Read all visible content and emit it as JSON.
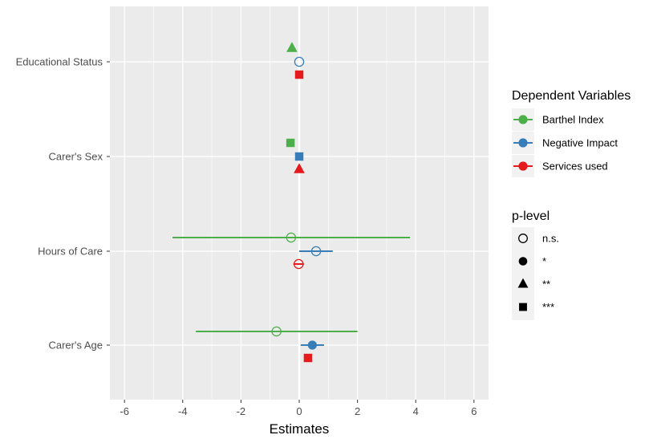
{
  "chart_data": {
    "type": "scatter",
    "subtype": "coefficient-plot",
    "xlabel": "Estimates",
    "ylabel": "",
    "xlim": [
      -6.5,
      6.5
    ],
    "x_ticks": [
      -6,
      -4,
      -2,
      0,
      2,
      4,
      6
    ],
    "x_tick_labels": [
      "-6",
      "-4",
      "-2",
      "0",
      "2",
      "4",
      "6"
    ],
    "categories": [
      "Educational Status",
      "Carer's Sex",
      "Hours of Care",
      "Carer's Age"
    ],
    "grid": true,
    "legend_position": "right",
    "series": [
      {
        "name": "Barthel Index",
        "color": "#4daf4a",
        "points": [
          {
            "category": "Educational Status",
            "estimate": -0.25,
            "ci": null,
            "p_level": "**"
          },
          {
            "category": "Carer's Sex",
            "estimate": -0.3,
            "ci": null,
            "p_level": "***"
          },
          {
            "category": "Hours of Care",
            "estimate": -0.28,
            "ci": [
              -4.35,
              3.8
            ],
            "p_level": "n.s."
          },
          {
            "category": "Carer's Age",
            "estimate": -0.78,
            "ci": [
              -3.55,
              2.0
            ],
            "p_level": "n.s."
          }
        ]
      },
      {
        "name": "Negative Impact",
        "color": "#377eb8",
        "points": [
          {
            "category": "Educational Status",
            "estimate": 0.0,
            "ci": null,
            "p_level": "n.s."
          },
          {
            "category": "Carer's Sex",
            "estimate": 0.0,
            "ci": null,
            "p_level": "***"
          },
          {
            "category": "Hours of Care",
            "estimate": 0.58,
            "ci": [
              0.0,
              1.15
            ],
            "p_level": "n.s."
          },
          {
            "category": "Carer's Age",
            "estimate": 0.45,
            "ci": [
              0.05,
              0.85
            ],
            "p_level": "*"
          }
        ]
      },
      {
        "name": "Services used",
        "color": "#e41a1c",
        "points": [
          {
            "category": "Educational Status",
            "estimate": 0.0,
            "ci": null,
            "p_level": "***"
          },
          {
            "category": "Carer's Sex",
            "estimate": 0.0,
            "ci": null,
            "p_level": "**"
          },
          {
            "category": "Hours of Care",
            "estimate": -0.02,
            "ci": [
              -0.2,
              0.16
            ],
            "p_level": "n.s."
          },
          {
            "category": "Carer's Age",
            "estimate": 0.3,
            "ci": null,
            "p_level": "***"
          }
        ]
      }
    ]
  },
  "legend": {
    "dependent_title": "Dependent Variables",
    "dependent_items": [
      "Barthel Index",
      "Negative Impact",
      "Services used"
    ],
    "p_title": "p-level",
    "p_items": [
      {
        "label": "n.s.",
        "shape": "open-circle"
      },
      {
        "label": "*",
        "shape": "filled-circle"
      },
      {
        "label": "**",
        "shape": "triangle"
      },
      {
        "label": "***",
        "shape": "square"
      }
    ]
  },
  "colors": {
    "panel_background": "#ebebeb",
    "grid": "#ffffff",
    "legend_key_background": "#f2f2f2"
  }
}
